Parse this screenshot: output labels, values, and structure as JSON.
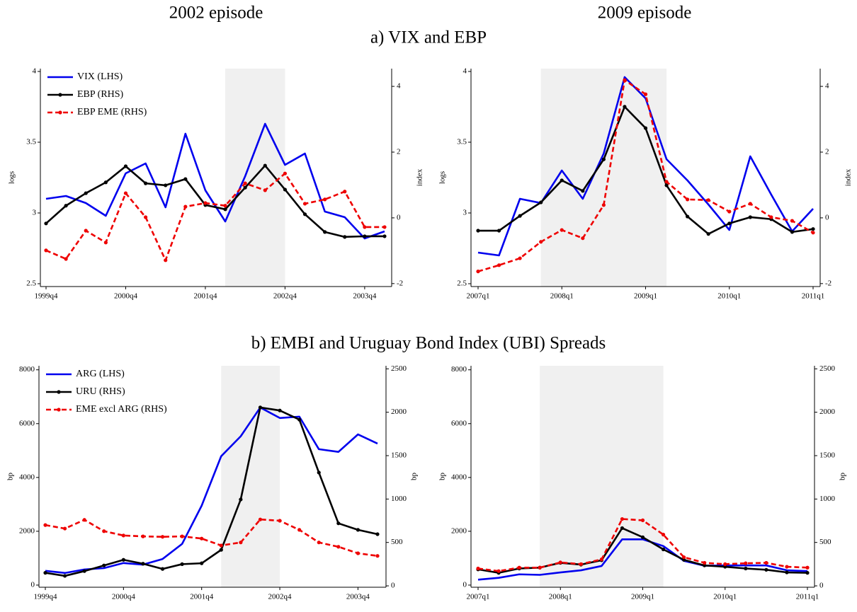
{
  "headers": {
    "columns": [
      "2002 episode",
      "2009 episode"
    ],
    "sections": [
      "a) VIX and EBP",
      "b) EMBI and Uruguay Bond Index (UBI) Spreads"
    ]
  },
  "chart_data": [
    {
      "type": "line",
      "categories": [
        "1999q4",
        null,
        null,
        null,
        "2000q4",
        null,
        null,
        null,
        "2001q4",
        null,
        null,
        null,
        "2002q4",
        null,
        null,
        null,
        "2003q4",
        null
      ],
      "ylabel": "logs",
      "y2label": "index",
      "ylim": [
        2.48,
        4.02
      ],
      "yticks": [
        2.5,
        3,
        3.5,
        4
      ],
      "y2lim": [
        -2.09,
        4.54
      ],
      "y2ticks": [
        -2,
        0,
        2,
        4
      ],
      "shade": [
        9,
        12
      ],
      "legend": "upper left",
      "series": [
        {
          "name": "VIX (LHS)",
          "color": "#0000ee",
          "dash": false,
          "marker": false,
          "values": [
            3.1,
            3.12,
            3.07,
            2.98,
            3.28,
            3.35,
            3.04,
            3.56,
            3.16,
            2.94,
            3.26,
            3.63,
            3.34,
            3.42,
            3.01,
            2.97,
            2.82,
            2.87
          ]
        },
        {
          "name": "EBP (RHS)",
          "color": "#000000",
          "dash": false,
          "marker": true,
          "axis": "y2",
          "values": [
            -0.17,
            0.37,
            0.75,
            1.08,
            1.57,
            1.05,
            0.99,
            1.18,
            0.39,
            0.26,
            0.92,
            1.59,
            0.86,
            0.11,
            -0.43,
            -0.58,
            -0.56,
            -0.56
          ]
        },
        {
          "name": "EBP EME (RHS)",
          "color": "#ee0000",
          "dash": true,
          "marker": true,
          "axis": "y2",
          "values": [
            -0.99,
            -1.25,
            -0.39,
            -0.75,
            0.75,
            0.02,
            -1.29,
            0.34,
            0.45,
            0.37,
            1.05,
            0.84,
            1.35,
            0.43,
            0.56,
            0.8,
            -0.28,
            -0.28
          ]
        }
      ]
    },
    {
      "type": "line",
      "categories": [
        "2007q1",
        null,
        null,
        null,
        "2008q1",
        null,
        null,
        null,
        "2009q1",
        null,
        null,
        null,
        "2010q1",
        null,
        null,
        null,
        "2011q1"
      ],
      "ylabel": "logs",
      "y2label": "index",
      "ylim": [
        2.48,
        4.02
      ],
      "yticks": [
        2.5,
        3,
        3.5,
        4
      ],
      "y2lim": [
        -2.09,
        4.54
      ],
      "y2ticks": [
        -2,
        0,
        2,
        4
      ],
      "shade": [
        3,
        9
      ],
      "series": [
        {
          "color": "#0000ee",
          "dash": false,
          "marker": false,
          "values": [
            2.72,
            2.7,
            3.1,
            3.07,
            3.3,
            3.1,
            3.42,
            3.96,
            3.81,
            3.38,
            3.23,
            3.06,
            2.88,
            3.4,
            3.13,
            2.87,
            3.03
          ]
        },
        {
          "color": "#000000",
          "dash": false,
          "marker": true,
          "axis": "y2",
          "values": [
            -0.39,
            -0.39,
            0.06,
            0.47,
            1.14,
            0.82,
            1.78,
            3.38,
            2.73,
            0.99,
            0.04,
            -0.49,
            -0.17,
            0.02,
            -0.04,
            -0.43,
            -0.34
          ]
        },
        {
          "color": "#ee0000",
          "dash": true,
          "marker": true,
          "axis": "y2",
          "values": [
            -1.63,
            -1.44,
            -1.23,
            -0.73,
            -0.37,
            -0.62,
            0.39,
            4.19,
            3.76,
            1.1,
            0.56,
            0.54,
            0.19,
            0.43,
            0.02,
            -0.09,
            -0.45
          ]
        }
      ]
    },
    {
      "type": "line",
      "categories": [
        "1999q4",
        null,
        null,
        null,
        "2000q4",
        null,
        null,
        null,
        "2001q4",
        null,
        null,
        null,
        "2002q4",
        null,
        null,
        null,
        "2003q4",
        null
      ],
      "ylabel": "bp",
      "y2label": "bp",
      "ylim": [
        -80,
        8150
      ],
      "yticks": [
        0,
        2000,
        4000,
        6000,
        8000
      ],
      "y2lim": [
        -16,
        2535
      ],
      "y2ticks": [
        0,
        500,
        1000,
        1500,
        2000,
        2500
      ],
      "shade": [
        9,
        12
      ],
      "legend": "upper left",
      "series": [
        {
          "name": "ARG (LHS)",
          "color": "#0000ee",
          "dash": false,
          "marker": false,
          "values": [
            530,
            450,
            580,
            630,
            820,
            760,
            970,
            1530,
            2950,
            4790,
            5530,
            6600,
            6210,
            6260,
            5050,
            4950,
            5600,
            5260
          ]
        },
        {
          "name": "URU (RHS)",
          "color": "#000000",
          "dash": false,
          "marker": true,
          "axis": "y2",
          "values": [
            150,
            115,
            170,
            235,
            300,
            255,
            195,
            250,
            260,
            415,
            995,
            2055,
            2020,
            1915,
            1305,
            720,
            645,
            595
          ]
        },
        {
          "name": "EME excl ARG (RHS)",
          "color": "#ee0000",
          "dash": true,
          "marker": true,
          "axis": "y2",
          "values": [
            700,
            660,
            760,
            630,
            580,
            570,
            565,
            570,
            545,
            465,
            500,
            765,
            750,
            645,
            500,
            450,
            375,
            345
          ]
        }
      ]
    },
    {
      "type": "line",
      "categories": [
        "2007q1",
        null,
        null,
        null,
        "2008q1",
        null,
        null,
        null,
        "2009q1",
        null,
        null,
        null,
        "2010q1",
        null,
        null,
        null,
        "2011q1"
      ],
      "ylabel": "bp",
      "y2label": "bp",
      "ylim": [
        -80,
        8150
      ],
      "yticks": [
        0,
        2000,
        4000,
        6000,
        8000
      ],
      "y2lim": [
        -16,
        2535
      ],
      "y2ticks": [
        0,
        500,
        1000,
        1500,
        2000,
        2500
      ],
      "shade": [
        3,
        9
      ],
      "series": [
        {
          "color": "#0000ee",
          "dash": false,
          "marker": false,
          "values": [
            200,
            270,
            400,
            380,
            470,
            550,
            710,
            1700,
            1700,
            1450,
            900,
            720,
            730,
            730,
            730,
            550,
            520
          ]
        },
        {
          "color": "#000000",
          "dash": false,
          "marker": true,
          "axis": "y2",
          "values": [
            190,
            150,
            200,
            210,
            265,
            245,
            295,
            665,
            560,
            420,
            300,
            235,
            220,
            200,
            185,
            155,
            150
          ]
        },
        {
          "color": "#ee0000",
          "dash": true,
          "marker": true,
          "axis": "y2",
          "values": [
            200,
            170,
            210,
            210,
            270,
            250,
            305,
            770,
            755,
            590,
            330,
            265,
            250,
            260,
            265,
            220,
            210
          ]
        }
      ]
    }
  ]
}
